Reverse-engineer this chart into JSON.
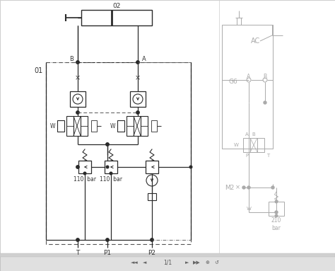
{
  "bg_color": "#f5f5f5",
  "main_bg": "#ffffff",
  "line_color": "#2a2a2a",
  "dash_color": "#555555",
  "gray": "#aaaaaa",
  "light_gray": "#cccccc",
  "label_01": "01",
  "label_02": "02",
  "label_G6": "G6",
  "label_AC": "AC",
  "label_M2": "M2",
  "label_A": "A",
  "label_B": "B",
  "label_T": "T",
  "label_P1": "P1",
  "label_P2": "P2",
  "label_W": "W",
  "label_110bar_1": "110  bar",
  "label_110bar_2": "110  bar",
  "label_210bar": "210\nbar",
  "nav_text": "1/1",
  "nav_bar_color": "#e0e0e0",
  "nav_strip_color": "#d0d0d0"
}
